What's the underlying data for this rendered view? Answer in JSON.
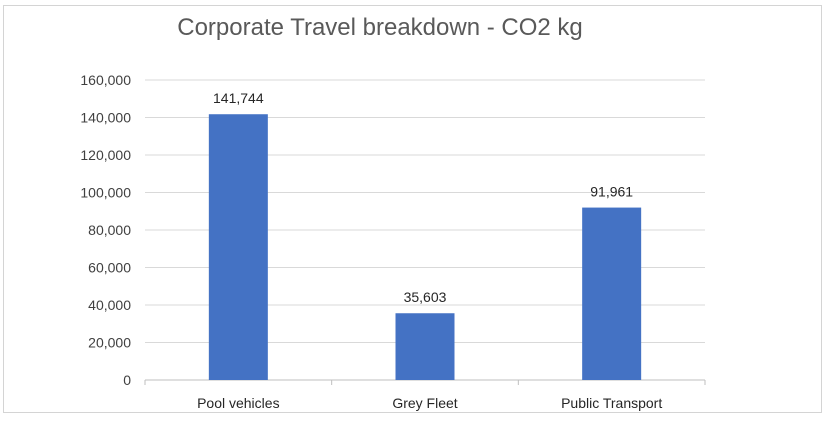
{
  "chart_data": {
    "type": "bar",
    "title": "Corporate Travel breakdown - CO2 kg",
    "categories": [
      "Pool vehicles",
      "Grey Fleet",
      "Public Transport"
    ],
    "values": [
      141744,
      35603,
      91961
    ],
    "data_labels": [
      "141,744",
      "35,603",
      "91,961"
    ],
    "xlabel": "",
    "ylabel": "",
    "ylim": [
      0,
      160000
    ],
    "y_ticks": [
      0,
      20000,
      40000,
      60000,
      80000,
      100000,
      120000,
      140000,
      160000
    ],
    "y_tick_labels": [
      "0",
      "20,000",
      "40,000",
      "60,000",
      "80,000",
      "100,000",
      "120,000",
      "140,000",
      "160,000"
    ],
    "grid": true,
    "legend": "none",
    "bar_color": "#4472c4",
    "grid_color": "#d9d9d9"
  }
}
